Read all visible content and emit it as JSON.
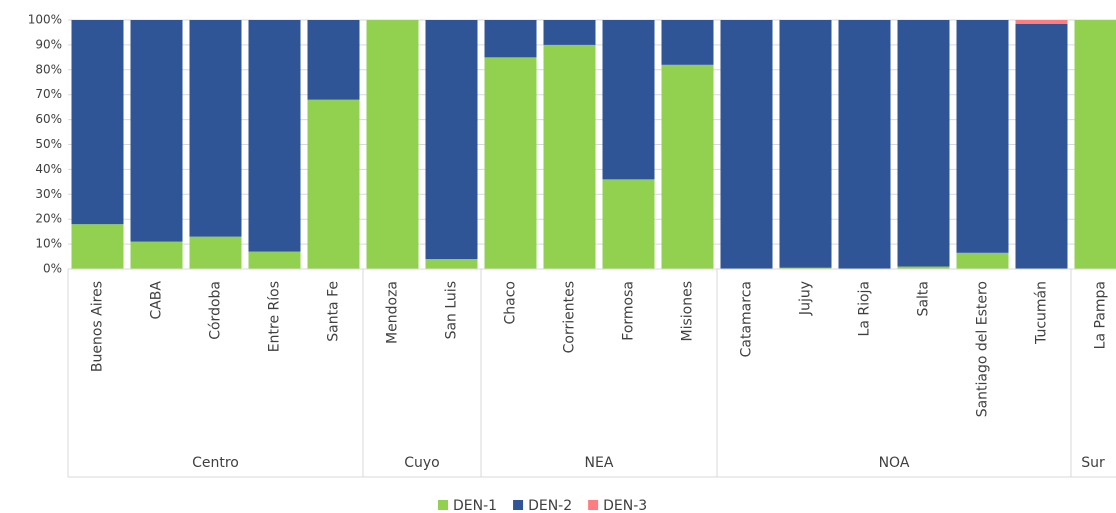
{
  "chart_data": {
    "type": "stacked_bar",
    "groups": [
      {
        "label": "Centro",
        "categories": [
          "Buenos Aires",
          "CABA",
          "Córdoba",
          "Entre Ríos",
          "Santa Fe"
        ]
      },
      {
        "label": "Cuyo",
        "categories": [
          "Mendoza",
          "San Luis"
        ]
      },
      {
        "label": "NEA",
        "categories": [
          "Chaco",
          "Corrientes",
          "Formosa",
          "Misiones"
        ]
      },
      {
        "label": "NOA",
        "categories": [
          "Catamarca",
          "Jujuy",
          "La Rioja",
          "Salta",
          "Santiago del Estero",
          "Tucumán"
        ]
      },
      {
        "label": "Sur",
        "categories": [
          "La Pampa"
        ]
      }
    ],
    "series": [
      {
        "name": "DEN-1",
        "color": "#92d050",
        "values": [
          18,
          11,
          13,
          7,
          68,
          100,
          4,
          85,
          90,
          36,
          82,
          0,
          0.5,
          0,
          1,
          6.5,
          0,
          100
        ]
      },
      {
        "name": "DEN-2",
        "color": "#2f5597",
        "values": [
          82,
          89,
          87,
          93,
          32,
          0,
          96,
          15,
          10,
          64,
          18,
          100,
          99.5,
          100,
          99,
          93.5,
          98.5,
          0
        ]
      },
      {
        "name": "DEN-3",
        "color": "#ff7c80",
        "values": [
          0,
          0,
          0,
          0,
          0,
          0,
          0,
          0,
          0,
          0,
          0,
          0,
          0,
          0,
          0,
          0,
          1.5,
          0
        ]
      }
    ],
    "ylim": [
      0,
      100
    ],
    "yticks": [
      {
        "value": 0,
        "label": "0%"
      },
      {
        "value": 10,
        "label": "10%"
      },
      {
        "value": 20,
        "label": "20%"
      },
      {
        "value": 30,
        "label": "30%"
      },
      {
        "value": 40,
        "label": "40%"
      },
      {
        "value": 50,
        "label": "50%"
      },
      {
        "value": 60,
        "label": "60%"
      },
      {
        "value": 70,
        "label": "70%"
      },
      {
        "value": 80,
        "label": "80%"
      },
      {
        "value": 90,
        "label": "90%"
      },
      {
        "value": 100,
        "label": "100%"
      }
    ],
    "grid": true
  }
}
